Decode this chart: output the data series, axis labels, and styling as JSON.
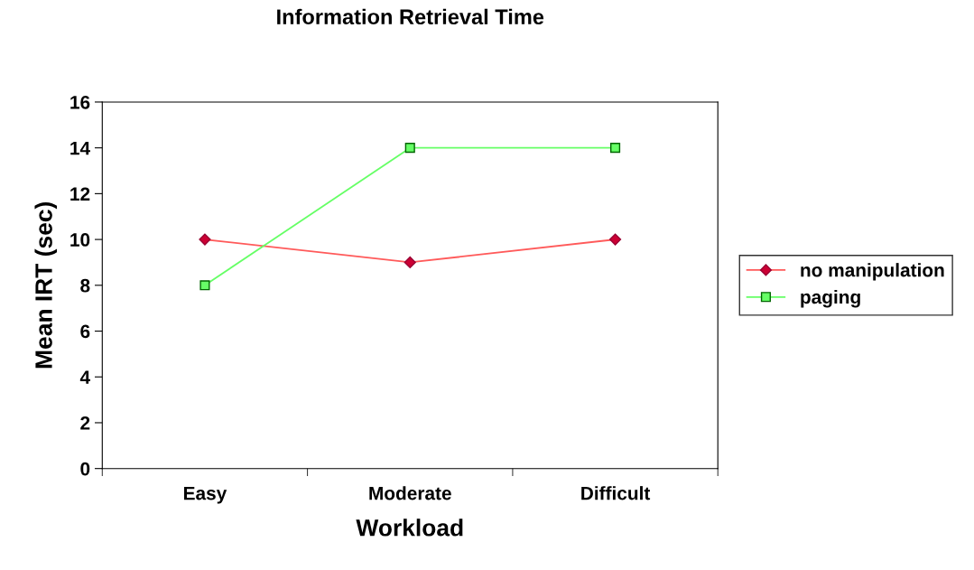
{
  "chart_data": {
    "type": "line",
    "title": "Information Retrieval Time",
    "xlabel": "Workload",
    "ylabel": "Mean IRT (sec)",
    "categories": [
      "Easy",
      "Moderate",
      "Difficult"
    ],
    "series": [
      {
        "name": "no manipulation",
        "color": "#ff5a5a",
        "marker": "diamond",
        "values": [
          10,
          9,
          10
        ]
      },
      {
        "name": "paging",
        "color": "#66ff66",
        "marker": "square",
        "values": [
          8,
          14,
          14
        ]
      }
    ],
    "ylim": [
      0,
      16
    ],
    "yticks": [
      0,
      2,
      4,
      6,
      8,
      10,
      12,
      14,
      16
    ],
    "grid": false,
    "legend": "right",
    "line_style": "solid"
  }
}
